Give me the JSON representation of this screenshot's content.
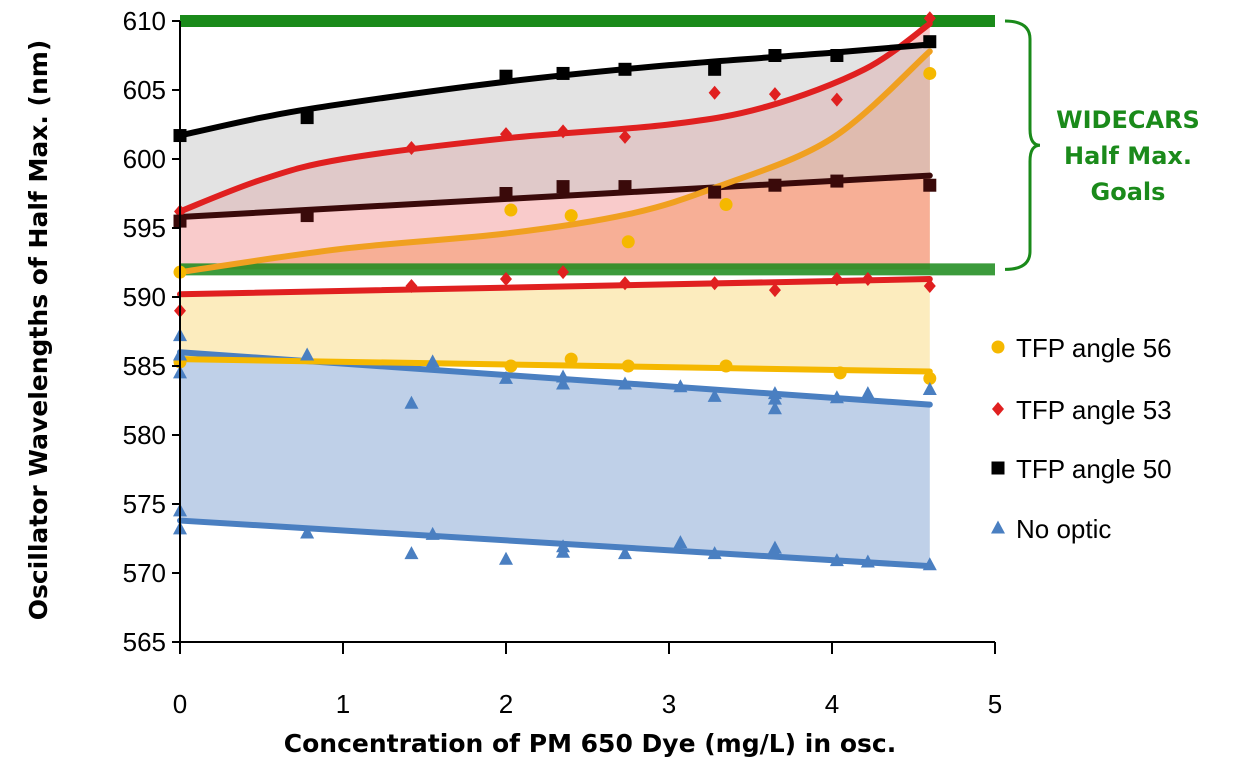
{
  "chart_data": {
    "type": "scatter",
    "xlabel": "Concentration of PM 650 Dye (mg/L) in osc.",
    "ylabel": "Oscillator Wavelengths of Half Max. (nm)",
    "xlim": [
      0,
      5
    ],
    "ylim": [
      565,
      610
    ],
    "x_ticks": [
      "0",
      "1",
      "2",
      "3",
      "4",
      "5"
    ],
    "y_ticks": [
      "565",
      "570",
      "575",
      "580",
      "585",
      "590",
      "595",
      "600",
      "605",
      "610"
    ],
    "grid": false,
    "legend_position": "right",
    "goal_band": {
      "label_lines": [
        "WIDECARS",
        "Half Max.",
        "Goals"
      ],
      "low": 592,
      "high": 610,
      "color": "#1a8a1a"
    },
    "series": [
      {
        "name": "TFP angle 56",
        "marker": "circle",
        "color": "#f5b800",
        "fit_color_upper": "#f0a020",
        "fill_color": "#f7a14a",
        "band_fill": "#fbe6a8",
        "upper_points": [
          [
            0,
            591.8
          ],
          [
            2.03,
            596.3
          ],
          [
            2.4,
            595.9
          ],
          [
            2.75,
            594
          ],
          [
            3.35,
            596.7
          ],
          [
            4.6,
            606.2
          ]
        ],
        "upper_fit": [
          [
            0,
            591.8
          ],
          [
            1,
            593.5
          ],
          [
            2,
            594.6
          ],
          [
            2.75,
            596
          ],
          [
            3.3,
            598
          ],
          [
            4,
            601.5
          ],
          [
            4.6,
            607.8
          ]
        ],
        "lower_points": [
          [
            0,
            585.3
          ],
          [
            2.03,
            585
          ],
          [
            2.4,
            585.5
          ],
          [
            2.75,
            585
          ],
          [
            3.35,
            585
          ],
          [
            4.05,
            584.5
          ],
          [
            4.6,
            584.1
          ]
        ],
        "lower_fit": [
          [
            0,
            585.5
          ],
          [
            4.6,
            584.6
          ]
        ]
      },
      {
        "name": "TFP angle 53",
        "marker": "diamond",
        "color": "#e02020",
        "fill_color": "#f4a0a0",
        "upper_points": [
          [
            0,
            596.2
          ],
          [
            1.42,
            600.8
          ],
          [
            2,
            601.8
          ],
          [
            2.35,
            602
          ],
          [
            2.73,
            601.6
          ],
          [
            3.28,
            604.8
          ],
          [
            3.65,
            604.7
          ],
          [
            4.03,
            604.3
          ],
          [
            4.6,
            610.2
          ]
        ],
        "upper_fit": [
          [
            0,
            596.2
          ],
          [
            0.5,
            598.5
          ],
          [
            1,
            600
          ],
          [
            2,
            601.5
          ],
          [
            3,
            602.5
          ],
          [
            3.6,
            603.8
          ],
          [
            4.2,
            606.5
          ],
          [
            4.6,
            609.8
          ]
        ],
        "lower_points": [
          [
            0,
            589
          ],
          [
            1.42,
            590.8
          ],
          [
            2,
            591.3
          ],
          [
            2.35,
            591.8
          ],
          [
            2.73,
            591
          ],
          [
            3.28,
            591
          ],
          [
            3.65,
            590.5
          ],
          [
            4.03,
            591.3
          ],
          [
            4.22,
            591.3
          ],
          [
            4.6,
            590.8
          ]
        ],
        "lower_fit": [
          [
            0,
            590.2
          ],
          [
            4.6,
            591.3
          ]
        ]
      },
      {
        "name": "TFP angle 50",
        "marker": "square",
        "color": "#000000",
        "lower_color": "#3a0a0a",
        "fill_color": "#c8c8c8",
        "upper_points": [
          [
            0,
            601.7
          ],
          [
            0.78,
            603
          ],
          [
            2,
            606
          ],
          [
            2.35,
            606.2
          ],
          [
            2.73,
            606.5
          ],
          [
            3.28,
            606.5
          ],
          [
            3.65,
            607.5
          ],
          [
            4.03,
            607.5
          ],
          [
            4.6,
            608.5
          ]
        ],
        "upper_fit": [
          [
            0,
            601.7
          ],
          [
            0.5,
            603
          ],
          [
            1,
            604
          ],
          [
            2,
            605.6
          ],
          [
            3,
            606.8
          ],
          [
            4,
            607.7
          ],
          [
            4.6,
            608.3
          ]
        ],
        "lower_points": [
          [
            0,
            595.5
          ],
          [
            0.78,
            595.9
          ],
          [
            2,
            597.5
          ],
          [
            2.35,
            598
          ],
          [
            2.73,
            598
          ],
          [
            3.28,
            597.6
          ],
          [
            3.65,
            598.1
          ],
          [
            4.03,
            598.4
          ],
          [
            4.6,
            598.1
          ]
        ],
        "lower_fit": [
          [
            0,
            595.8
          ],
          [
            4.6,
            598.8
          ]
        ]
      },
      {
        "name": "No optic",
        "marker": "triangle",
        "color": "#4a7fc1",
        "fill_color": "#b4c8e4",
        "upper_points": [
          [
            0,
            587.2
          ],
          [
            0,
            585.8
          ],
          [
            0,
            584.5
          ],
          [
            0.78,
            585.8
          ],
          [
            1.42,
            582.3
          ],
          [
            1.55,
            585.3
          ],
          [
            2,
            584.1
          ],
          [
            2.35,
            584.2
          ],
          [
            2.35,
            583.7
          ],
          [
            2.73,
            583.7
          ],
          [
            3.07,
            583.5
          ],
          [
            3.28,
            582.8
          ],
          [
            3.65,
            583
          ],
          [
            3.65,
            582.6
          ],
          [
            3.65,
            581.9
          ],
          [
            4.03,
            582.7
          ],
          [
            4.22,
            583
          ],
          [
            4.6,
            583.3
          ]
        ],
        "upper_fit": [
          [
            0,
            586
          ],
          [
            4.6,
            582.2
          ]
        ],
        "lower_points": [
          [
            0,
            574.5
          ],
          [
            0,
            573.2
          ],
          [
            0.78,
            572.9
          ],
          [
            1.42,
            571.4
          ],
          [
            1.55,
            572.8
          ],
          [
            2,
            571
          ],
          [
            2.35,
            571.9
          ],
          [
            2.35,
            571.5
          ],
          [
            2.73,
            571.4
          ],
          [
            3.07,
            572.2
          ],
          [
            3.28,
            571.4
          ],
          [
            3.65,
            571.8
          ],
          [
            3.65,
            571.4
          ],
          [
            4.03,
            570.9
          ],
          [
            4.22,
            570.8
          ],
          [
            4.6,
            570.6
          ]
        ],
        "lower_fit": [
          [
            0,
            573.8
          ],
          [
            4.6,
            570.5
          ]
        ]
      }
    ]
  }
}
